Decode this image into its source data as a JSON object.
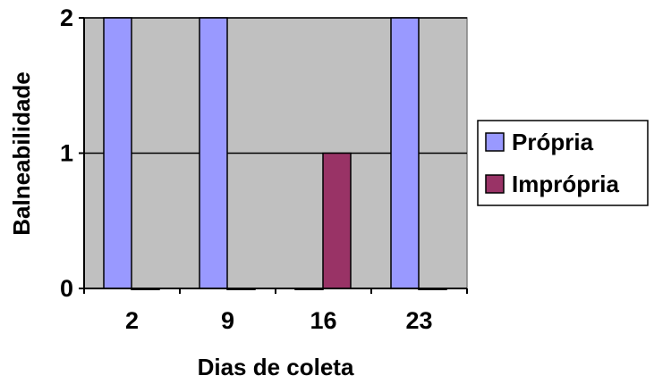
{
  "chart_data": {
    "type": "bar",
    "categories": [
      "2",
      "9",
      "16",
      "23"
    ],
    "series": [
      {
        "name": "Própria",
        "values": [
          2,
          2,
          0,
          2
        ],
        "color": "#9999ff"
      },
      {
        "name": "Imprópria",
        "values": [
          0,
          0,
          1,
          0
        ],
        "color": "#993366"
      }
    ],
    "title": "",
    "xlabel": "Dias de coleta",
    "ylabel": "Balneabilidade",
    "ylim": [
      0,
      2
    ],
    "yticks": [
      "0",
      "1",
      "2"
    ],
    "grid": true,
    "legend": "right",
    "plot_background": "#c0c0c0"
  }
}
